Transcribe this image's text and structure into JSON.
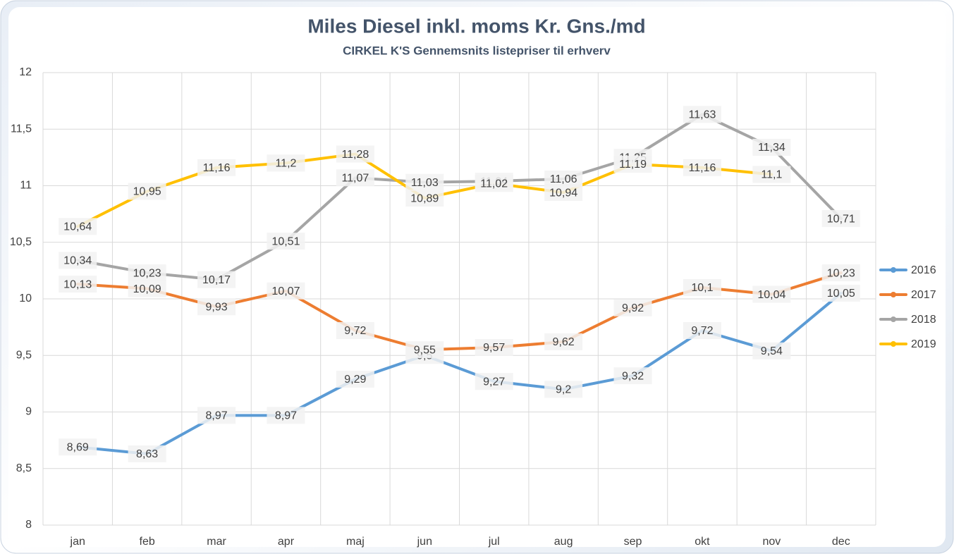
{
  "chart_data": {
    "type": "line",
    "title": "Miles Diesel inkl. moms Kr. Gns./md",
    "subtitle": "CIRKEL K'S Gennemsnits listepriser til erhverv",
    "categories": [
      "jan",
      "feb",
      "mar",
      "apr",
      "maj",
      "jun",
      "jul",
      "aug",
      "sep",
      "okt",
      "nov",
      "dec"
    ],
    "ylim": [
      8,
      12
    ],
    "yticks": [
      8,
      {
        "value": 8.5,
        "label": "8,5"
      },
      9,
      {
        "value": 9.5,
        "label": "9,5"
      },
      10,
      {
        "value": 10.5,
        "label": "10,5"
      },
      11,
      {
        "value": 11.5,
        "label": "11,5"
      },
      12
    ],
    "grid": true,
    "legend": "right",
    "series": [
      {
        "name": "2016",
        "color": "#5b9bd5",
        "values": [
          8.69,
          8.63,
          8.97,
          8.97,
          9.29,
          9.5,
          9.27,
          9.2,
          9.32,
          9.72,
          9.54,
          10.05
        ],
        "value_labels": [
          "8,69",
          "8,63",
          "8,97",
          "8,97",
          "9,29",
          "9,5",
          "9,27",
          "9,2",
          "9,32",
          "9,72",
          "9,54",
          "10,05"
        ]
      },
      {
        "name": "2017",
        "color": "#ed7d31",
        "values": [
          10.13,
          10.09,
          9.93,
          10.07,
          9.72,
          9.55,
          9.57,
          9.62,
          9.92,
          10.1,
          10.04,
          10.23
        ],
        "value_labels": [
          "10,13",
          "10,09",
          "9,93",
          "10,07",
          "9,72",
          "9,55",
          "9,57",
          "9,62",
          "9,92",
          "10,1",
          "10,04",
          "10,23"
        ]
      },
      {
        "name": "2018",
        "color": "#a5a5a5",
        "values": [
          10.34,
          10.23,
          10.17,
          10.51,
          11.07,
          11.03,
          11.04,
          11.06,
          11.25,
          11.63,
          11.34,
          10.71
        ],
        "value_labels": [
          "10,34",
          "10,23",
          "10,17",
          "10,51",
          "11,07",
          "11,03",
          "11,04",
          "11,06",
          "11,25",
          "11,63",
          "11,34",
          "10,71"
        ]
      },
      {
        "name": "2019",
        "color": "#ffc000",
        "values": [
          10.64,
          10.95,
          11.16,
          11.2,
          11.28,
          10.89,
          11.02,
          10.94,
          11.19,
          11.16,
          11.1,
          null
        ],
        "value_labels": [
          "10,64",
          "10,95",
          "11,16",
          "11,2",
          "11,28",
          "10,89",
          "11,02",
          "10,94",
          "11,19",
          "11,16",
          "11,1",
          null
        ]
      }
    ]
  }
}
